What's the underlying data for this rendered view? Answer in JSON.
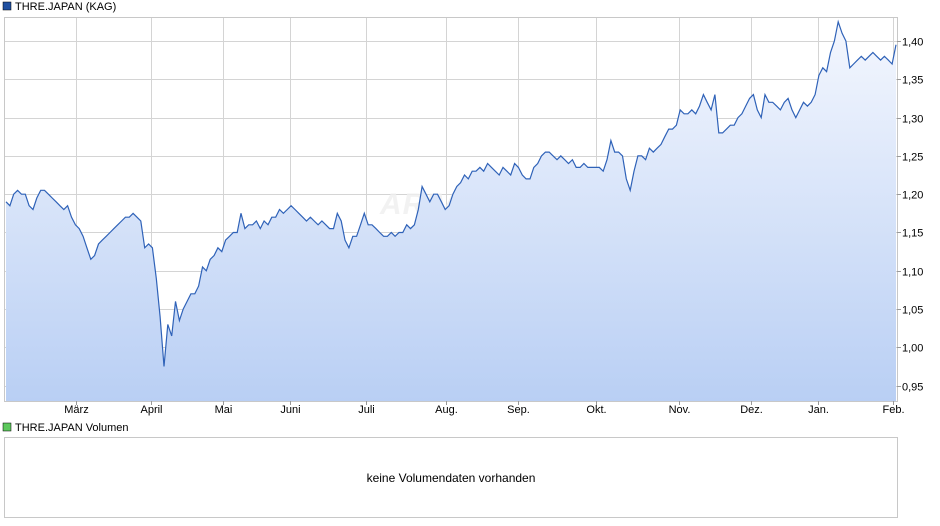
{
  "colors": {
    "line": "#2f62b8",
    "area_top": "#f4f7fe",
    "area_bottom": "#b9cff4",
    "legend_price": "#1f4fa0",
    "legend_volume": "#5cc85c"
  },
  "price_panel": {
    "legend_label": "THRE.JAPAN (KAG)"
  },
  "volume_panel": {
    "legend_label": "THRE.JAPAN Volumen",
    "message": "keine Volumendaten vorhanden"
  },
  "watermark": "ARIVA.DE",
  "chart_data": {
    "type": "area",
    "series_name": "THRE.JAPAN (KAG)",
    "x_tick_labels": [
      "März",
      "April",
      "Mai",
      "Juni",
      "Juli",
      "Aug.",
      "Sep.",
      "Okt.",
      "Nov.",
      "Dez.",
      "Jan.",
      "Feb."
    ],
    "x_range": [
      "Feb. (prior year)",
      "Feb."
    ],
    "y_ticks": [
      0.95,
      1.0,
      1.05,
      1.1,
      1.15,
      1.2,
      1.25,
      1.3,
      1.35,
      1.4
    ],
    "y_tick_labels": [
      "0,95",
      "1,00",
      "1,05",
      "1,10",
      "1,15",
      "1,20",
      "1,25",
      "1,30",
      "1,35",
      "1,40"
    ],
    "ylim": [
      0.93,
      1.43
    ],
    "grid": true,
    "y_axis_side": "right",
    "legend_placement": "top-left",
    "values": [
      1.19,
      1.185,
      1.2,
      1.205,
      1.2,
      1.2,
      1.185,
      1.18,
      1.195,
      1.205,
      1.205,
      1.2,
      1.195,
      1.19,
      1.185,
      1.18,
      1.185,
      1.17,
      1.16,
      1.155,
      1.145,
      1.13,
      1.115,
      1.12,
      1.135,
      1.14,
      1.145,
      1.15,
      1.155,
      1.16,
      1.165,
      1.17,
      1.17,
      1.175,
      1.17,
      1.165,
      1.13,
      1.135,
      1.13,
      1.09,
      1.04,
      0.975,
      1.03,
      1.015,
      1.06,
      1.035,
      1.05,
      1.06,
      1.07,
      1.07,
      1.08,
      1.105,
      1.1,
      1.115,
      1.12,
      1.13,
      1.125,
      1.14,
      1.145,
      1.15,
      1.15,
      1.175,
      1.155,
      1.16,
      1.16,
      1.165,
      1.155,
      1.165,
      1.16,
      1.17,
      1.17,
      1.18,
      1.175,
      1.18,
      1.185,
      1.18,
      1.175,
      1.17,
      1.165,
      1.17,
      1.165,
      1.16,
      1.165,
      1.16,
      1.155,
      1.155,
      1.175,
      1.165,
      1.14,
      1.13,
      1.145,
      1.145,
      1.16,
      1.175,
      1.16,
      1.16,
      1.155,
      1.15,
      1.145,
      1.145,
      1.15,
      1.145,
      1.15,
      1.15,
      1.16,
      1.155,
      1.16,
      1.18,
      1.21,
      1.2,
      1.19,
      1.2,
      1.2,
      1.19,
      1.18,
      1.185,
      1.2,
      1.21,
      1.215,
      1.225,
      1.22,
      1.23,
      1.23,
      1.235,
      1.23,
      1.24,
      1.235,
      1.23,
      1.225,
      1.235,
      1.23,
      1.225,
      1.24,
      1.235,
      1.225,
      1.22,
      1.22,
      1.235,
      1.24,
      1.25,
      1.255,
      1.255,
      1.25,
      1.245,
      1.25,
      1.245,
      1.24,
      1.245,
      1.235,
      1.235,
      1.24,
      1.235,
      1.235,
      1.235,
      1.235,
      1.23,
      1.245,
      1.27,
      1.255,
      1.255,
      1.25,
      1.22,
      1.205,
      1.23,
      1.25,
      1.25,
      1.245,
      1.26,
      1.255,
      1.26,
      1.265,
      1.275,
      1.285,
      1.285,
      1.29,
      1.31,
      1.305,
      1.305,
      1.31,
      1.305,
      1.315,
      1.33,
      1.32,
      1.31,
      1.33,
      1.28,
      1.28,
      1.285,
      1.29,
      1.29,
      1.3,
      1.305,
      1.315,
      1.325,
      1.33,
      1.31,
      1.3,
      1.33,
      1.32,
      1.32,
      1.315,
      1.31,
      1.32,
      1.325,
      1.31,
      1.3,
      1.31,
      1.32,
      1.315,
      1.32,
      1.33,
      1.355,
      1.365,
      1.36,
      1.385,
      1.4,
      1.425,
      1.41,
      1.4,
      1.365,
      1.37,
      1.375,
      1.38,
      1.375,
      1.38,
      1.385,
      1.38,
      1.375,
      1.38,
      1.375,
      1.37,
      1.395
    ]
  }
}
